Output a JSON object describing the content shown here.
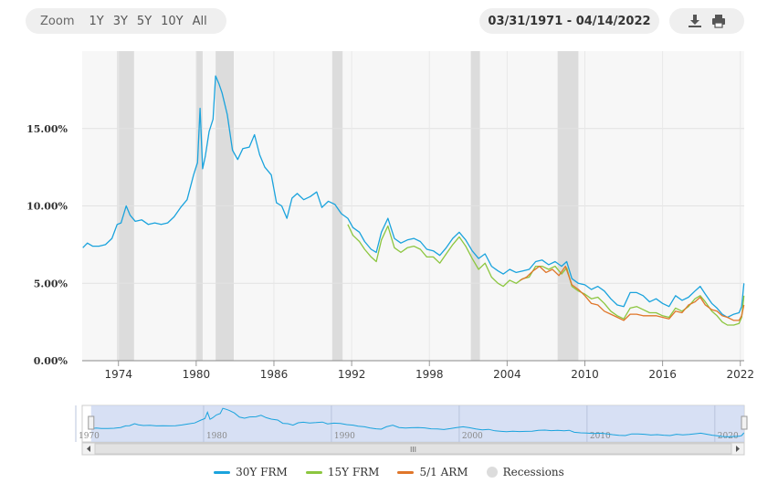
{
  "toolbar": {
    "zoom_label": "Zoom",
    "zoom_buttons": [
      "1Y",
      "3Y",
      "5Y",
      "10Y",
      "All"
    ],
    "date_range": "03/31/1971 - 04/14/2022",
    "download_icon": "download-icon",
    "print_icon": "print-icon"
  },
  "colors": {
    "frm30": "#1aa3dd",
    "frm15": "#8cc63f",
    "arm51": "#e0762a",
    "recession": "#dcdcdc",
    "navigator_fill": "#c9d6f0"
  },
  "chart_data": {
    "type": "line",
    "ylim": [
      0,
      20
    ],
    "xlim": [
      1971.2,
      2022.3
    ],
    "yticks": [
      "0.00%",
      "5.00%",
      "10.00%",
      "15.00%"
    ],
    "ytick_values": [
      0,
      5,
      10,
      15
    ],
    "xticks": [
      "1974",
      "1980",
      "1986",
      "1992",
      "1998",
      "2004",
      "2010",
      "2016",
      "2022"
    ],
    "xtick_values": [
      1974,
      1980,
      1986,
      1992,
      1998,
      2004,
      2010,
      2016,
      2022
    ],
    "navigator_ticks": [
      "1970",
      "1980",
      "1990",
      "2000",
      "2010",
      "2020"
    ],
    "navigator_tick_values": [
      1970,
      1980,
      1990,
      2000,
      2010,
      2020
    ],
    "navigator_xlim": [
      1970.5,
      2022.3
    ],
    "recessions": [
      [
        1973.9,
        1975.2
      ],
      [
        1980.0,
        1980.5
      ],
      [
        1981.5,
        1982.9
      ],
      [
        1990.5,
        1991.3
      ],
      [
        2001.2,
        2001.9
      ],
      [
        2007.9,
        2009.5
      ]
    ],
    "series": [
      {
        "name": "30Y FRM",
        "x": [
          1971.25,
          1971.6,
          1972.0,
          1972.5,
          1973.0,
          1973.5,
          1973.9,
          1974.2,
          1974.6,
          1974.9,
          1975.3,
          1975.8,
          1976.3,
          1976.8,
          1977.3,
          1977.8,
          1978.3,
          1978.8,
          1979.3,
          1979.8,
          1980.1,
          1980.3,
          1980.5,
          1980.7,
          1981.0,
          1981.3,
          1981.5,
          1981.75,
          1982.0,
          1982.4,
          1982.8,
          1983.2,
          1983.6,
          1984.1,
          1984.5,
          1984.9,
          1985.3,
          1985.8,
          1986.2,
          1986.6,
          1987.0,
          1987.4,
          1987.8,
          1988.3,
          1988.8,
          1989.3,
          1989.7,
          1990.2,
          1990.7,
          1991.2,
          1991.7,
          1992.1,
          1992.6,
          1993.0,
          1993.5,
          1993.9,
          1994.3,
          1994.8,
          1995.3,
          1995.8,
          1996.3,
          1996.8,
          1997.3,
          1997.8,
          1998.3,
          1998.8,
          1999.3,
          1999.8,
          2000.3,
          2000.8,
          2001.3,
          2001.8,
          2002.3,
          2002.8,
          2003.3,
          2003.7,
          2004.2,
          2004.7,
          2005.2,
          2005.7,
          2006.2,
          2006.7,
          2007.2,
          2007.7,
          2008.2,
          2008.6,
          2009.0,
          2009.5,
          2010.0,
          2010.5,
          2011.0,
          2011.5,
          2012.0,
          2012.5,
          2013.0,
          2013.5,
          2014.0,
          2014.5,
          2015.0,
          2015.5,
          2016.0,
          2016.5,
          2017.0,
          2017.5,
          2018.0,
          2018.5,
          2018.9,
          2019.3,
          2019.8,
          2020.2,
          2020.6,
          2021.0,
          2021.5,
          2021.9,
          2022.1,
          2022.28
        ],
        "y": [
          7.3,
          7.6,
          7.4,
          7.4,
          7.5,
          7.9,
          8.8,
          8.9,
          10.0,
          9.4,
          9.0,
          9.1,
          8.8,
          8.9,
          8.8,
          8.9,
          9.3,
          9.9,
          10.4,
          12.0,
          12.8,
          16.3,
          12.4,
          13.2,
          14.8,
          15.6,
          18.4,
          17.9,
          17.3,
          15.9,
          13.6,
          13.0,
          13.7,
          13.8,
          14.6,
          13.3,
          12.5,
          12.0,
          10.2,
          10.0,
          9.2,
          10.5,
          10.8,
          10.4,
          10.6,
          10.9,
          9.9,
          10.3,
          10.1,
          9.5,
          9.2,
          8.6,
          8.3,
          7.7,
          7.2,
          7.0,
          8.3,
          9.2,
          7.9,
          7.6,
          7.8,
          7.9,
          7.7,
          7.2,
          7.1,
          6.8,
          7.3,
          7.9,
          8.3,
          7.8,
          7.1,
          6.6,
          6.9,
          6.1,
          5.8,
          5.6,
          5.9,
          5.7,
          5.8,
          5.9,
          6.4,
          6.5,
          6.2,
          6.4,
          6.1,
          6.4,
          5.3,
          5.0,
          4.9,
          4.6,
          4.8,
          4.5,
          4.0,
          3.6,
          3.5,
          4.4,
          4.4,
          4.2,
          3.8,
          4.0,
          3.7,
          3.5,
          4.2,
          3.9,
          4.1,
          4.5,
          4.8,
          4.3,
          3.7,
          3.4,
          3.0,
          2.8,
          3.0,
          3.1,
          3.5,
          5.0
        ]
      },
      {
        "name": "15Y FRM",
        "x": [
          1991.7,
          1992.1,
          1992.6,
          1993.0,
          1993.5,
          1993.9,
          1994.3,
          1994.8,
          1995.3,
          1995.8,
          1996.3,
          1996.8,
          1997.3,
          1997.8,
          1998.3,
          1998.8,
          1999.3,
          1999.8,
          2000.3,
          2000.8,
          2001.3,
          2001.8,
          2002.3,
          2002.8,
          2003.3,
          2003.7,
          2004.2,
          2004.7,
          2005.2,
          2005.7,
          2006.2,
          2006.7,
          2007.2,
          2007.7,
          2008.2,
          2008.6,
          2009.0,
          2009.5,
          2010.0,
          2010.5,
          2011.0,
          2011.5,
          2012.0,
          2012.5,
          2013.0,
          2013.5,
          2014.0,
          2014.5,
          2015.0,
          2015.5,
          2016.0,
          2016.5,
          2017.0,
          2017.5,
          2018.0,
          2018.5,
          2018.9,
          2019.3,
          2019.8,
          2020.2,
          2020.6,
          2021.0,
          2021.5,
          2021.9,
          2022.1,
          2022.28
        ],
        "y": [
          8.8,
          8.1,
          7.7,
          7.2,
          6.7,
          6.4,
          7.8,
          8.7,
          7.3,
          7.0,
          7.3,
          7.4,
          7.2,
          6.7,
          6.7,
          6.3,
          6.9,
          7.5,
          8.0,
          7.4,
          6.6,
          5.9,
          6.3,
          5.4,
          5.0,
          4.8,
          5.2,
          5.0,
          5.3,
          5.4,
          6.1,
          6.1,
          5.9,
          6.1,
          5.6,
          6.0,
          4.8,
          4.5,
          4.3,
          4.0,
          4.1,
          3.7,
          3.2,
          2.9,
          2.7,
          3.4,
          3.5,
          3.3,
          3.1,
          3.1,
          2.9,
          2.8,
          3.4,
          3.2,
          3.5,
          4.0,
          4.2,
          3.8,
          3.2,
          2.9,
          2.5,
          2.3,
          2.3,
          2.4,
          2.8,
          4.2
        ]
      },
      {
        "name": "5/1 ARM",
        "x": [
          2005.0,
          2005.5,
          2006.0,
          2006.5,
          2007.0,
          2007.5,
          2008.0,
          2008.5,
          2009.0,
          2009.5,
          2010.0,
          2010.5,
          2011.0,
          2011.5,
          2012.0,
          2012.5,
          2013.0,
          2013.5,
          2014.0,
          2014.5,
          2015.0,
          2015.5,
          2016.0,
          2016.5,
          2017.0,
          2017.5,
          2018.0,
          2018.5,
          2018.9,
          2019.3,
          2019.8,
          2020.2,
          2020.6,
          2021.0,
          2021.5,
          2021.9,
          2022.1,
          2022.28
        ],
        "y": [
          5.2,
          5.4,
          5.8,
          6.1,
          5.7,
          5.9,
          5.5,
          6.1,
          4.9,
          4.6,
          4.2,
          3.7,
          3.6,
          3.2,
          3.0,
          2.8,
          2.6,
          3.0,
          3.0,
          2.9,
          2.9,
          2.9,
          2.8,
          2.7,
          3.2,
          3.1,
          3.6,
          3.8,
          4.1,
          3.6,
          3.3,
          3.2,
          2.9,
          2.8,
          2.6,
          2.6,
          2.9,
          3.6
        ]
      }
    ],
    "legend": [
      {
        "name": "30Y FRM",
        "kind": "line",
        "color": "#1aa3dd"
      },
      {
        "name": "15Y FRM",
        "kind": "line",
        "color": "#8cc63f"
      },
      {
        "name": "5/1 ARM",
        "kind": "line",
        "color": "#e0762a"
      },
      {
        "name": "Recessions",
        "kind": "dot",
        "color": "#dcdcdc"
      }
    ],
    "grid": true,
    "legend_position": "bottom-center",
    "navigator_scrollbar_label": "III"
  }
}
